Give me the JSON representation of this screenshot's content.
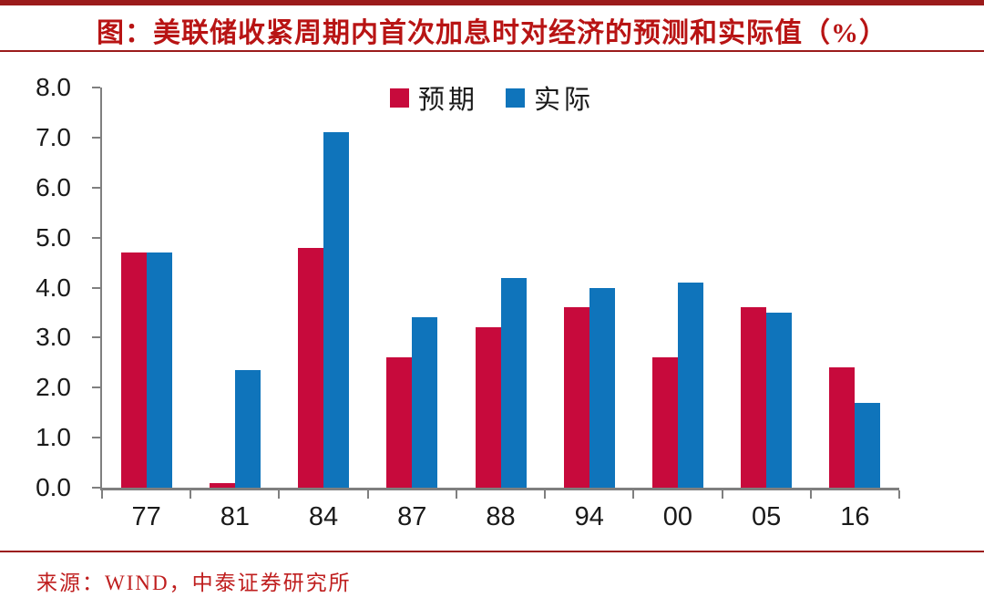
{
  "page": {
    "title": "图：美联储收紧周期内首次加息时对经济的预测和实际值（%）",
    "source": "来源：WIND，中泰证券研究所"
  },
  "colors": {
    "rule_red": "#9B1B1B",
    "title_red": "#B81414",
    "source_red": "#BF1E1E",
    "axis_gray": "#7F7F7F",
    "forecast_red": "#C70A3C",
    "actual_blue": "#0F74BB"
  },
  "chart_data": {
    "type": "bar",
    "title": "图：美联储收紧周期内首次加息时对经济的预测和实际值（%）",
    "categories": [
      "77",
      "81",
      "84",
      "87",
      "88",
      "94",
      "00",
      "05",
      "16"
    ],
    "series": [
      {
        "name": "预期",
        "color": "#C70A3C",
        "values": [
          4.7,
          0.1,
          4.8,
          2.6,
          3.2,
          3.6,
          2.6,
          3.6,
          2.4
        ]
      },
      {
        "name": "实际",
        "color": "#0F74BB",
        "values": [
          4.7,
          2.35,
          7.1,
          3.4,
          4.2,
          4.0,
          4.1,
          3.5,
          1.7
        ]
      }
    ],
    "xlabel": "",
    "ylabel": "",
    "ylim": [
      0,
      8
    ],
    "y_tick_labels": [
      "0.0",
      "1.0",
      "2.0",
      "3.0",
      "4.0",
      "5.0",
      "6.0",
      "7.0",
      "8.0"
    ],
    "grid": false,
    "legend_position": "top-center",
    "source": "来源：WIND，中泰证券研究所"
  }
}
